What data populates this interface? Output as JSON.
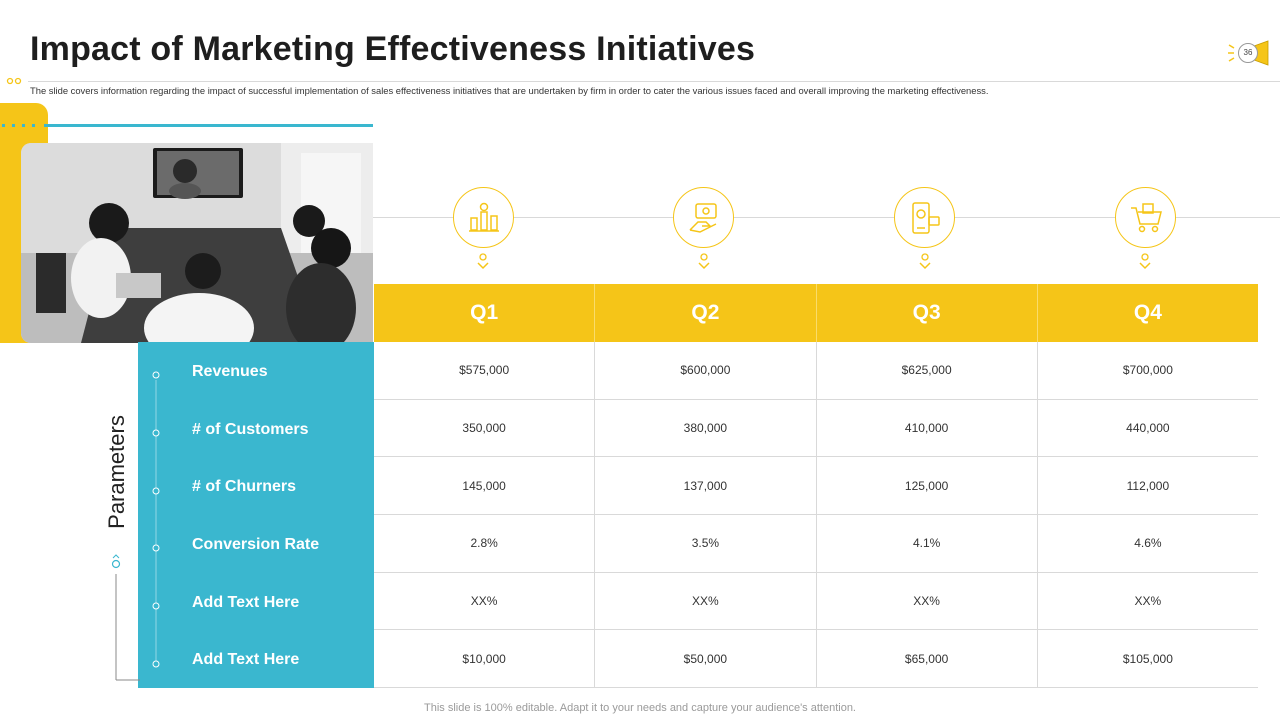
{
  "slide": {
    "title": "Impact of Marketing Effectiveness Initiatives",
    "subtitle": "The slide covers information regarding the impact  of successful implementation  of sales effectiveness initiatives that are undertaken by  firm in  order to cater the various issues faced and overall improving the marketing  effectiveness.",
    "page_number": "36",
    "footer": "This slide is 100% editable. Adapt it to your needs and capture your audience's attention."
  },
  "colors": {
    "accent_yellow": "#f5c518",
    "accent_teal": "#3ab7cf"
  },
  "icons": [
    "bar-chart-award-icon",
    "hand-with-card-icon",
    "mobile-app-icon",
    "shopping-cart-icon"
  ],
  "table": {
    "side_title": "Parameters",
    "columns": [
      "Q1",
      "Q2",
      "Q3",
      "Q4"
    ],
    "rows": [
      {
        "label": "Revenues",
        "values": [
          "$575,000",
          "$600,000",
          "$625,000",
          "$700,000"
        ]
      },
      {
        "label": "# of Customers",
        "values": [
          "350,000",
          "380,000",
          "410,000",
          "440,000"
        ]
      },
      {
        "label": "# of Churners",
        "values": [
          "145,000",
          "137,000",
          "125,000",
          "112,000"
        ]
      },
      {
        "label": "Conversion Rate",
        "values": [
          "2.8%",
          "3.5%",
          "4.1%",
          "4.6%"
        ]
      },
      {
        "label": "Add Text Here",
        "values": [
          "XX%",
          "XX%",
          "XX%",
          "XX%"
        ]
      },
      {
        "label": "Add Text Here",
        "values": [
          "$10,000",
          "$50,000",
          "$65,000",
          "$105,000"
        ]
      }
    ]
  }
}
